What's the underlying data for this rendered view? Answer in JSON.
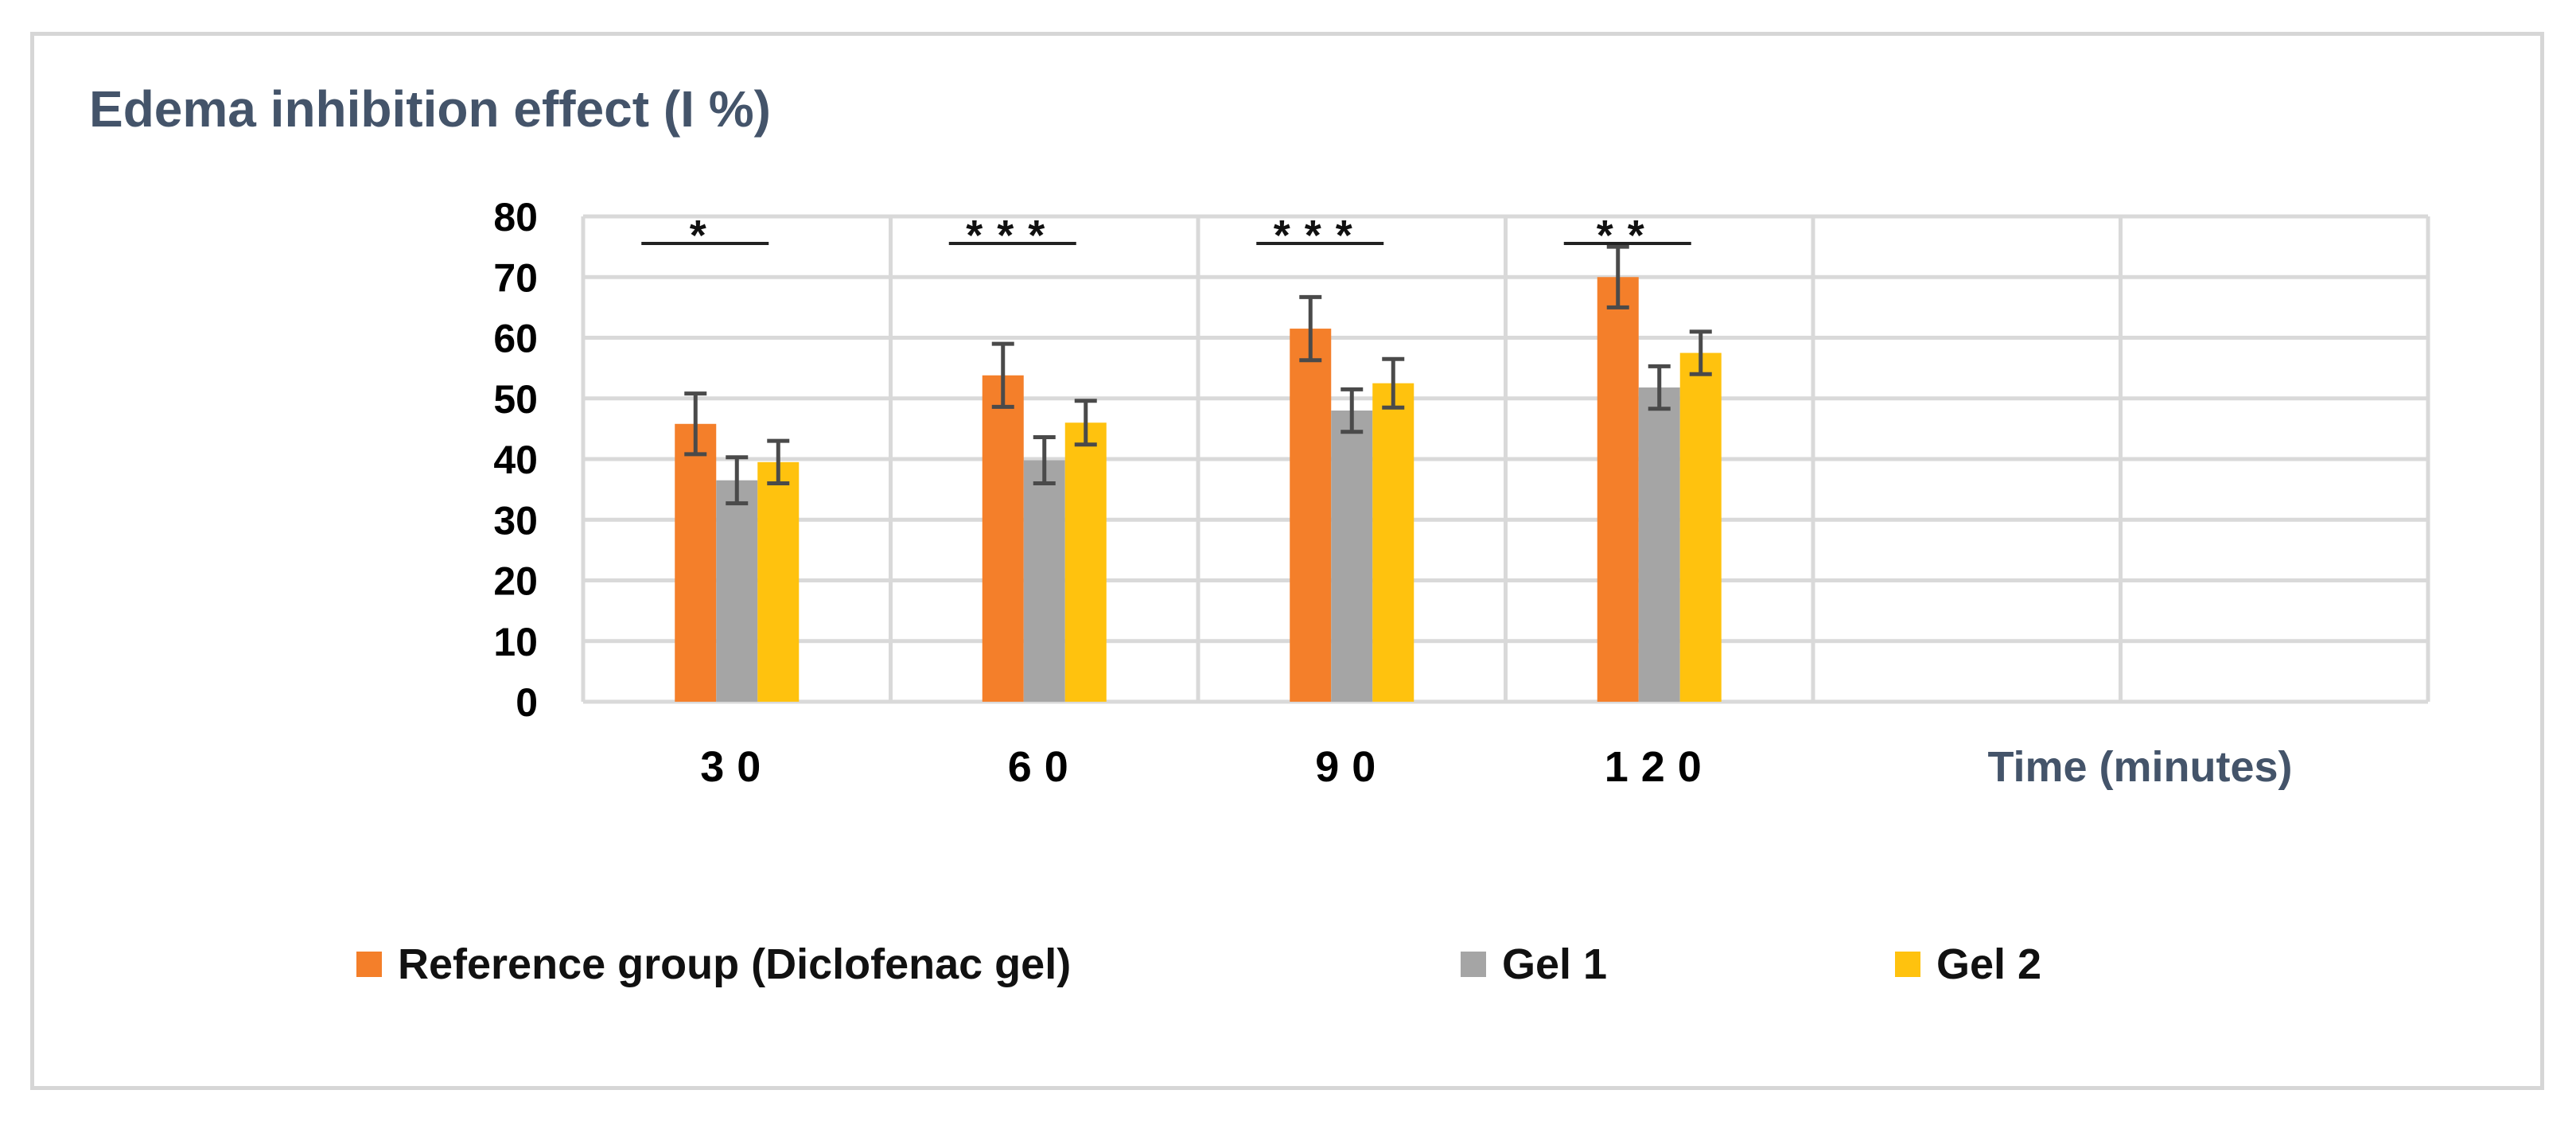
{
  "chart_data": {
    "type": "bar",
    "title": "Edema inhibition effect (I %)",
    "xlabel": "Time (minutes)",
    "ylabel": "",
    "categories": [
      "30",
      "60",
      "90",
      "120"
    ],
    "empty_slots": 2,
    "ylim": [
      0,
      80
    ],
    "yticks": [
      "0",
      "10",
      "20",
      "30",
      "40",
      "50",
      "60",
      "70",
      "80"
    ],
    "grid": true,
    "legend_position": "bottom",
    "series": [
      {
        "name": "Reference group (Diclofenac gel)",
        "color": "#f47f2a",
        "values": [
          45.8,
          53.8,
          61.5,
          70.0
        ],
        "errors": [
          5.0,
          5.2,
          5.2,
          5.0
        ]
      },
      {
        "name": "Gel 1",
        "color": "#a5a5a5",
        "values": [
          36.5,
          39.8,
          48.0,
          51.8
        ],
        "errors": [
          3.8,
          3.8,
          3.5,
          3.5
        ]
      },
      {
        "name": "Gel 2",
        "color": "#ffc20e",
        "values": [
          39.5,
          46.0,
          52.5,
          57.5
        ],
        "errors": [
          3.5,
          3.6,
          4.0,
          3.5
        ]
      }
    ],
    "significance": [
      {
        "category": "30",
        "label": "*"
      },
      {
        "category": "60",
        "label": "***"
      },
      {
        "category": "90",
        "label": "***"
      },
      {
        "category": "120",
        "label": "**"
      }
    ]
  }
}
